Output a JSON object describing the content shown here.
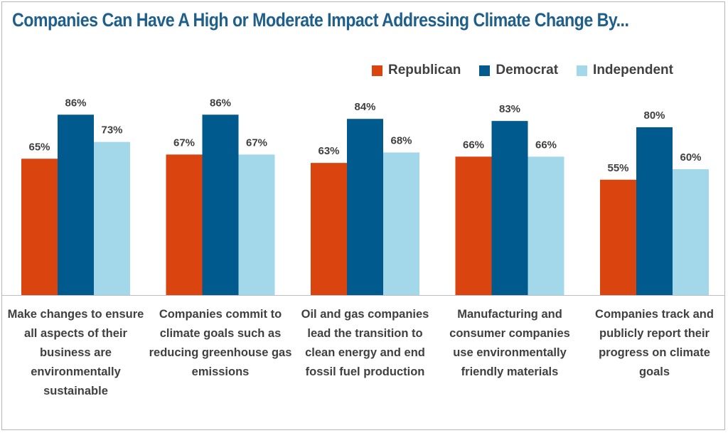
{
  "title": "Companies Can Have A High or Moderate Impact Addressing Climate Change By...",
  "colors": {
    "title": "#1f5f8b",
    "republican": "#d9440f",
    "democrat": "#005a8e",
    "independent": "#a3d8ea",
    "axis": "#bfbfbf"
  },
  "chart_data": {
    "type": "bar",
    "title": "Companies Can Have A High or Moderate Impact Addressing Climate Change By...",
    "legend_position": "top-right",
    "grid": false,
    "ylim": [
      0,
      100
    ],
    "categories": [
      "Make changes to ensure all aspects of their business are environmentally sustainable",
      "Companies commit to climate goals such as reducing greenhouse gas emissions",
      "Oil and gas companies lead the transition to clean energy and end fossil fuel production",
      "Manufacturing and consumer  companies use environmentally friendly materials",
      "Companies track and publicly report their progress on climate goals"
    ],
    "category_lines": [
      [
        "Make changes to ensure",
        "all aspects of their",
        "business are",
        "environmentally",
        "sustainable"
      ],
      [
        "Companies commit to",
        "climate goals such as",
        "reducing greenhouse gas",
        "emissions"
      ],
      [
        "Oil and gas companies",
        "lead the transition to",
        "clean energy and end",
        "fossil fuel production"
      ],
      [
        "Manufacturing and",
        "consumer  companies",
        "use environmentally",
        "friendly materials"
      ],
      [
        "Companies track and",
        "publicly report their",
        "progress on climate",
        "goals"
      ]
    ],
    "series": [
      {
        "name": "Republican",
        "color": "#d9440f",
        "values": [
          65,
          67,
          63,
          66,
          55
        ],
        "labels": [
          "65%",
          "67%",
          "63%",
          "66%",
          "55%"
        ]
      },
      {
        "name": "Democrat",
        "color": "#005a8e",
        "values": [
          86,
          86,
          84,
          83,
          80
        ],
        "labels": [
          "86%",
          "86%",
          "84%",
          "83%",
          "80%"
        ]
      },
      {
        "name": "Independent",
        "color": "#a3d8ea",
        "values": [
          73,
          67,
          68,
          66,
          60
        ],
        "labels": [
          "73%",
          "67%",
          "68%",
          "66%",
          "60%"
        ]
      }
    ]
  }
}
